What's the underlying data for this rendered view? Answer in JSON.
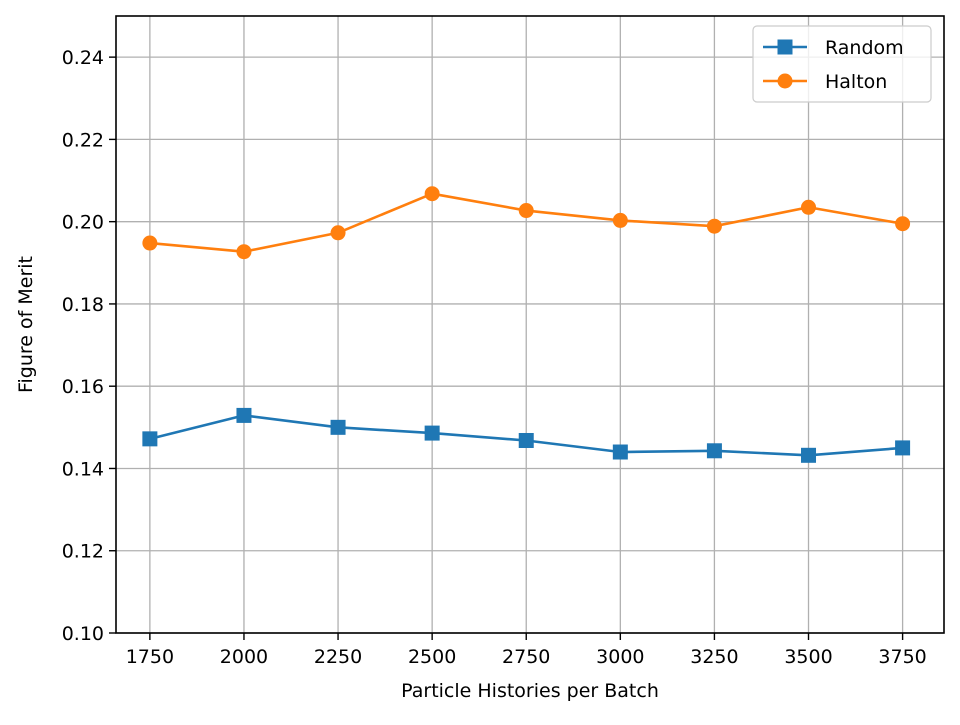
{
  "chart_data": {
    "type": "line",
    "title": "",
    "xlabel": "Particle Histories per Batch",
    "ylabel": "Figure of Merit",
    "x": [
      1750,
      2000,
      2250,
      2500,
      2750,
      3000,
      3250,
      3500,
      3750
    ],
    "x_tick_labels": [
      "1750",
      "2000",
      "2250",
      "2500",
      "2750",
      "3000",
      "3250",
      "3500",
      "3750"
    ],
    "y_ticks": [
      0.1,
      0.12,
      0.14,
      0.16,
      0.18,
      0.2,
      0.22,
      0.24
    ],
    "y_tick_labels": [
      "0.10",
      "0.12",
      "0.14",
      "0.16",
      "0.18",
      "0.20",
      "0.22",
      "0.24"
    ],
    "xlim": [
      1660,
      3860
    ],
    "ylim": [
      0.1,
      0.25
    ],
    "grid": true,
    "legend_position": "top-right",
    "series": [
      {
        "name": "Random",
        "color": "#1f77b4",
        "marker": "square",
        "values": [
          0.1472,
          0.1529,
          0.15,
          0.1486,
          0.1468,
          0.144,
          0.1443,
          0.1432,
          0.145
        ]
      },
      {
        "name": "Halton",
        "color": "#ff7f0e",
        "marker": "circle",
        "values": [
          0.1948,
          0.1927,
          0.1973,
          0.2068,
          0.2027,
          0.2003,
          0.1989,
          0.2035,
          0.1995
        ]
      }
    ]
  }
}
